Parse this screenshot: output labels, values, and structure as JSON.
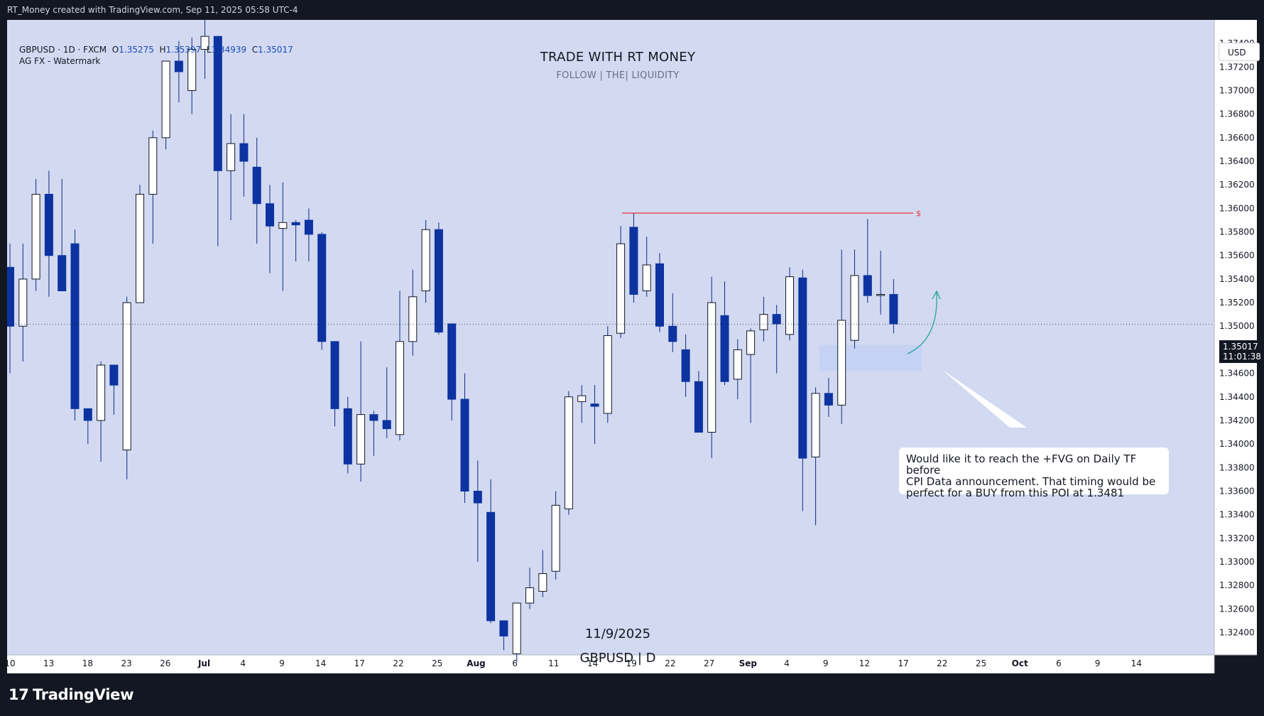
{
  "header": {
    "text": "RT_Money created with TradingView.com, Sep 11, 2025 05:58 UTC-4"
  },
  "legend": {
    "symbol_line": "GBPUSD · 1D · FXCM",
    "o_label": "O",
    "o_value": "1.35275",
    "h_label": "H",
    "h_value": "1.35397",
    "l_label": "L",
    "l_value": "1.34939",
    "c_label": "C",
    "c_value": "1.35017",
    "watermark_line": "AG FX - Watermark"
  },
  "overlay": {
    "title": "TRADE WITH RT MONEY",
    "subtitle": "FOLLOW   |   THE|   LIQUIDITY",
    "date": "11/9/2025",
    "pair": "GBPUSD | D"
  },
  "annotation": {
    "line1": "Would like it to reach the +FVG on Daily TF before",
    "line2": " CPI Data announcement.  That timing would be",
    "line3": " perfect for a BUY from this POI at 1.3481",
    "liquidity_marker": "$"
  },
  "price_axis": {
    "currency": "USD",
    "current_price": "1.35017",
    "countdown": "11:01:38"
  },
  "branding": {
    "logo_text": "TradingView",
    "logo_mark": "17"
  },
  "colors": {
    "bear": "#0c33a0",
    "bull": "#ffffff",
    "wick": "#0c2b86",
    "plot_background": "#d2d9f1",
    "liquidity_line": "#e53935",
    "fvg_zone": "#c3d0f5",
    "arrow": "#26a69a"
  },
  "chart_data": {
    "type": "candlestick",
    "symbol": "GBPUSD",
    "timeframe": "1D",
    "x_tick_labels": [
      "10",
      "13",
      "18",
      "23",
      "26",
      "Jul",
      "4",
      "9",
      "14",
      "17",
      "22",
      "25",
      "Aug",
      "6",
      "11",
      "14",
      "19",
      "22",
      "27",
      "Sep",
      "4",
      "9",
      "12",
      "17",
      "22",
      "25",
      "Oct",
      "6",
      "9",
      "14"
    ],
    "y_tick_labels": [
      "1.37400",
      "1.37200",
      "1.37000",
      "1.36800",
      "1.36600",
      "1.36400",
      "1.36200",
      "1.36000",
      "1.35800",
      "1.35600",
      "1.35400",
      "1.35200",
      "1.35000",
      "1.34800",
      "1.34600",
      "1.34400",
      "1.34200",
      "1.34000",
      "1.33800",
      "1.33600",
      "1.33400",
      "1.33200",
      "1.33000",
      "1.32800",
      "1.32600",
      "1.32400"
    ],
    "y_range": [
      1.3221,
      1.376
    ],
    "candles": [
      {
        "o": 1.355,
        "h": 1.357,
        "l": 1.346,
        "c": 1.35
      },
      {
        "o": 1.35,
        "h": 1.357,
        "l": 1.347,
        "c": 1.354
      },
      {
        "o": 1.354,
        "h": 1.3625,
        "l": 1.353,
        "c": 1.3612
      },
      {
        "o": 1.3612,
        "h": 1.3632,
        "l": 1.3525,
        "c": 1.356
      },
      {
        "o": 1.356,
        "h": 1.3625,
        "l": 1.353,
        "c": 1.353
      },
      {
        "o": 1.357,
        "h": 1.3582,
        "l": 1.342,
        "c": 1.343
      },
      {
        "o": 1.343,
        "h": 1.343,
        "l": 1.34,
        "c": 1.342
      },
      {
        "o": 1.342,
        "h": 1.347,
        "l": 1.3385,
        "c": 1.3467
      },
      {
        "o": 1.3467,
        "h": 1.3467,
        "l": 1.3425,
        "c": 1.345
      },
      {
        "o": 1.3395,
        "h": 1.3525,
        "l": 1.337,
        "c": 1.352
      },
      {
        "o": 1.352,
        "h": 1.362,
        "l": 1.352,
        "c": 1.3612
      },
      {
        "o": 1.3612,
        "h": 1.3666,
        "l": 1.357,
        "c": 1.366
      },
      {
        "o": 1.366,
        "h": 1.372,
        "l": 1.365,
        "c": 1.3725
      },
      {
        "o": 1.3725,
        "h": 1.3742,
        "l": 1.369,
        "c": 1.3716
      },
      {
        "o": 1.37,
        "h": 1.3745,
        "l": 1.368,
        "c": 1.3735
      },
      {
        "o": 1.3735,
        "h": 1.376,
        "l": 1.371,
        "c": 1.3746
      },
      {
        "o": 1.3746,
        "h": 1.3746,
        "l": 1.3568,
        "c": 1.3632
      },
      {
        "o": 1.3632,
        "h": 1.368,
        "l": 1.359,
        "c": 1.3655
      },
      {
        "o": 1.3655,
        "h": 1.368,
        "l": 1.361,
        "c": 1.364
      },
      {
        "o": 1.3635,
        "h": 1.366,
        "l": 1.357,
        "c": 1.3604
      },
      {
        "o": 1.3604,
        "h": 1.362,
        "l": 1.3545,
        "c": 1.3585
      },
      {
        "o": 1.3583,
        "h": 1.3622,
        "l": 1.353,
        "c": 1.3588
      },
      {
        "o": 1.3588,
        "h": 1.359,
        "l": 1.3555,
        "c": 1.3586
      },
      {
        "o": 1.359,
        "h": 1.36,
        "l": 1.3555,
        "c": 1.3578
      },
      {
        "o": 1.3578,
        "h": 1.358,
        "l": 1.348,
        "c": 1.3487
      },
      {
        "o": 1.3487,
        "h": 1.3487,
        "l": 1.3415,
        "c": 1.343
      },
      {
        "o": 1.343,
        "h": 1.344,
        "l": 1.3375,
        "c": 1.3383
      },
      {
        "o": 1.3383,
        "h": 1.3487,
        "l": 1.3368,
        "c": 1.3425
      },
      {
        "o": 1.3425,
        "h": 1.3428,
        "l": 1.339,
        "c": 1.342
      },
      {
        "o": 1.342,
        "h": 1.3465,
        "l": 1.3405,
        "c": 1.3413
      },
      {
        "o": 1.3408,
        "h": 1.353,
        "l": 1.3403,
        "c": 1.3487
      },
      {
        "o": 1.3487,
        "h": 1.3548,
        "l": 1.3475,
        "c": 1.3525
      },
      {
        "o": 1.353,
        "h": 1.359,
        "l": 1.352,
        "c": 1.3582
      },
      {
        "o": 1.3582,
        "h": 1.3588,
        "l": 1.3493,
        "c": 1.3495
      },
      {
        "o": 1.3502,
        "h": 1.3502,
        "l": 1.342,
        "c": 1.3438
      },
      {
        "o": 1.3438,
        "h": 1.346,
        "l": 1.335,
        "c": 1.336
      },
      {
        "o": 1.336,
        "h": 1.3386,
        "l": 1.33,
        "c": 1.335
      },
      {
        "o": 1.3342,
        "h": 1.337,
        "l": 1.3248,
        "c": 1.325
      },
      {
        "o": 1.325,
        "h": 1.325,
        "l": 1.3225,
        "c": 1.3237
      },
      {
        "o": 1.3222,
        "h": 1.3265,
        "l": 1.3215,
        "c": 1.3265
      },
      {
        "o": 1.3265,
        "h": 1.3295,
        "l": 1.326,
        "c": 1.3278
      },
      {
        "o": 1.3275,
        "h": 1.331,
        "l": 1.327,
        "c": 1.329
      },
      {
        "o": 1.3292,
        "h": 1.336,
        "l": 1.3285,
        "c": 1.3348
      },
      {
        "o": 1.3345,
        "h": 1.3445,
        "l": 1.334,
        "c": 1.344
      },
      {
        "o": 1.3436,
        "h": 1.345,
        "l": 1.3418,
        "c": 1.3441
      },
      {
        "o": 1.3434,
        "h": 1.345,
        "l": 1.34,
        "c": 1.3432
      },
      {
        "o": 1.3426,
        "h": 1.35,
        "l": 1.3418,
        "c": 1.3492
      },
      {
        "o": 1.3494,
        "h": 1.3585,
        "l": 1.349,
        "c": 1.357
      },
      {
        "o": 1.3584,
        "h": 1.3596,
        "l": 1.352,
        "c": 1.3527
      },
      {
        "o": 1.353,
        "h": 1.3576,
        "l": 1.3525,
        "c": 1.3552
      },
      {
        "o": 1.3553,
        "h": 1.3562,
        "l": 1.3495,
        "c": 1.35
      },
      {
        "o": 1.35,
        "h": 1.3528,
        "l": 1.3478,
        "c": 1.3487
      },
      {
        "o": 1.348,
        "h": 1.3493,
        "l": 1.344,
        "c": 1.3453
      },
      {
        "o": 1.3453,
        "h": 1.3462,
        "l": 1.341,
        "c": 1.341
      },
      {
        "o": 1.341,
        "h": 1.3542,
        "l": 1.3388,
        "c": 1.352
      },
      {
        "o": 1.3509,
        "h": 1.3538,
        "l": 1.345,
        "c": 1.3453
      },
      {
        "o": 1.3455,
        "h": 1.3489,
        "l": 1.3438,
        "c": 1.348
      },
      {
        "o": 1.3476,
        "h": 1.3498,
        "l": 1.3418,
        "c": 1.3496
      },
      {
        "o": 1.3497,
        "h": 1.3525,
        "l": 1.3487,
        "c": 1.351
      },
      {
        "o": 1.351,
        "h": 1.3518,
        "l": 1.346,
        "c": 1.3502
      },
      {
        "o": 1.3493,
        "h": 1.355,
        "l": 1.3488,
        "c": 1.3542
      },
      {
        "o": 1.3541,
        "h": 1.3548,
        "l": 1.3343,
        "c": 1.3388
      },
      {
        "o": 1.3389,
        "h": 1.3448,
        "l": 1.3331,
        "c": 1.3443
      },
      {
        "o": 1.3443,
        "h": 1.3456,
        "l": 1.3423,
        "c": 1.3433
      },
      {
        "o": 1.3433,
        "h": 1.3565,
        "l": 1.3417,
        "c": 1.3505
      },
      {
        "o": 1.3488,
        "h": 1.3565,
        "l": 1.3481,
        "c": 1.3543
      },
      {
        "o": 1.3543,
        "h": 1.3591,
        "l": 1.352,
        "c": 1.3526
      },
      {
        "o": 1.3527,
        "h": 1.3564,
        "l": 1.351,
        "c": 1.3527
      },
      {
        "o": 1.3527,
        "h": 1.354,
        "l": 1.3494,
        "c": 1.3502
      }
    ],
    "liquidity_level": 1.3596,
    "fvg_zone": [
      1.3462,
      1.3484
    ],
    "current_price": 1.35017
  }
}
